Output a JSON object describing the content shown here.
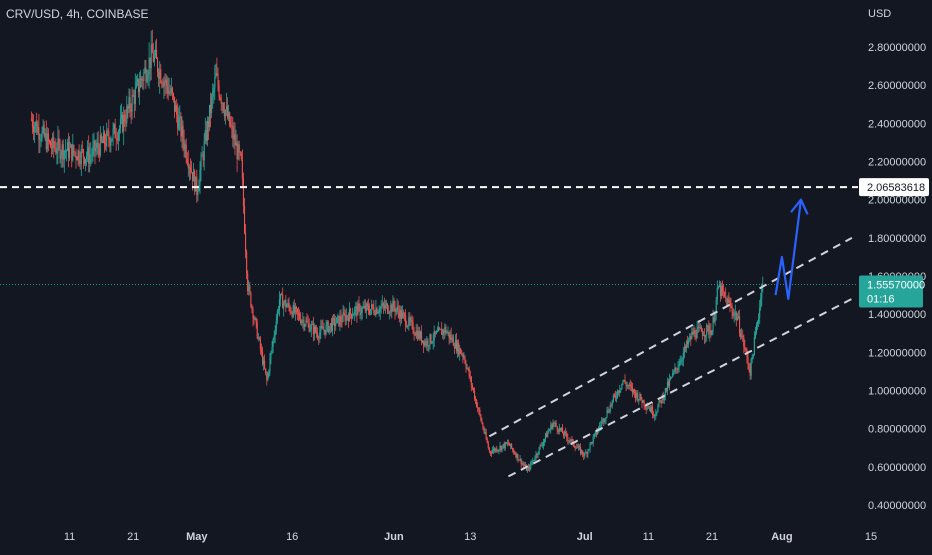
{
  "header": {
    "symbol": "CRV/USD, 4h, COINBASE",
    "currency": "USD"
  },
  "chart_data": {
    "type": "candlestick",
    "symbol": "CRV/USD",
    "interval": "4h",
    "exchange": "COINBASE",
    "y_axis": {
      "unit": "USD",
      "ticks": [
        "2.80000000",
        "2.60000000",
        "2.40000000",
        "2.20000000",
        "2.00000000",
        "1.80000000",
        "1.60000000",
        "1.40000000",
        "1.20000000",
        "1.00000000",
        "0.80000000",
        "0.60000000",
        "0.40000000"
      ],
      "range": [
        0.36,
        2.94
      ]
    },
    "x_axis": {
      "ticks": [
        "11",
        "21",
        "May",
        "16",
        "Jun",
        "13",
        "Jul",
        "11",
        "21",
        "Aug",
        "15"
      ],
      "bold_ticks": [
        "May",
        "Jun",
        "Jul",
        "Aug"
      ]
    },
    "price_path": [
      {
        "date": "Apr 5",
        "price": 2.42
      },
      {
        "date": "Apr 8",
        "price": 2.28
      },
      {
        "date": "Apr 14",
        "price": 2.23
      },
      {
        "date": "Apr 19",
        "price": 2.38
      },
      {
        "date": "Apr 24",
        "price": 2.76
      },
      {
        "date": "Apr 27",
        "price": 2.55
      },
      {
        "date": "May 1",
        "price": 2.05
      },
      {
        "date": "May 4",
        "price": 2.64
      },
      {
        "date": "May 8",
        "price": 2.18
      },
      {
        "date": "May 9",
        "price": 1.55
      },
      {
        "date": "May 12",
        "price": 1.05
      },
      {
        "date": "May 14",
        "price": 1.48
      },
      {
        "date": "May 20",
        "price": 1.3
      },
      {
        "date": "May 26",
        "price": 1.42
      },
      {
        "date": "Jun 1",
        "price": 1.44
      },
      {
        "date": "Jun 6",
        "price": 1.25
      },
      {
        "date": "Jun 9",
        "price": 1.32
      },
      {
        "date": "Jun 12",
        "price": 1.18
      },
      {
        "date": "Jun 16",
        "price": 0.68
      },
      {
        "date": "Jun 19",
        "price": 0.72
      },
      {
        "date": "Jun 22",
        "price": 0.58
      },
      {
        "date": "Jun 26",
        "price": 0.83
      },
      {
        "date": "Jul 1",
        "price": 0.66
      },
      {
        "date": "Jul 7",
        "price": 1.05
      },
      {
        "date": "Jul 12",
        "price": 0.88
      },
      {
        "date": "Jul 18",
        "price": 1.3
      },
      {
        "date": "Jul 21",
        "price": 1.32
      },
      {
        "date": "Jul 22",
        "price": 1.54
      },
      {
        "date": "Jul 25",
        "price": 1.38
      },
      {
        "date": "Jul 27",
        "price": 1.1
      },
      {
        "date": "Jul 29",
        "price": 1.5557
      }
    ],
    "horizontal_levels": [
      {
        "price": 2.06583618,
        "label": "2.06583618",
        "style": "dashed",
        "color": "#ffffff"
      }
    ],
    "last_price": {
      "price": 1.5557,
      "label": "1.55570000",
      "countdown": "01:16",
      "color": "#26a69a"
    },
    "channel": {
      "upper": [
        {
          "date": "Jun 16",
          "price": 0.76
        },
        {
          "date": "Aug 12",
          "price": 1.8
        }
      ],
      "lower": [
        {
          "date": "Jun 19",
          "price": 0.55
        },
        {
          "date": "Aug 12",
          "price": 1.48
        }
      ]
    },
    "projection_arrow": [
      {
        "date": "Jul 31",
        "price": 1.5
      },
      {
        "date": "Aug 1",
        "price": 1.7
      },
      {
        "date": "Aug 2",
        "price": 1.48
      },
      {
        "date": "Aug 4",
        "price": 2.0
      }
    ],
    "colors": {
      "background": "#131722",
      "up": "#26a69a",
      "down": "#ef5350",
      "channel": "#d1d4dc",
      "arrow": "#2962ff",
      "text": "#d1d4dc"
    }
  }
}
